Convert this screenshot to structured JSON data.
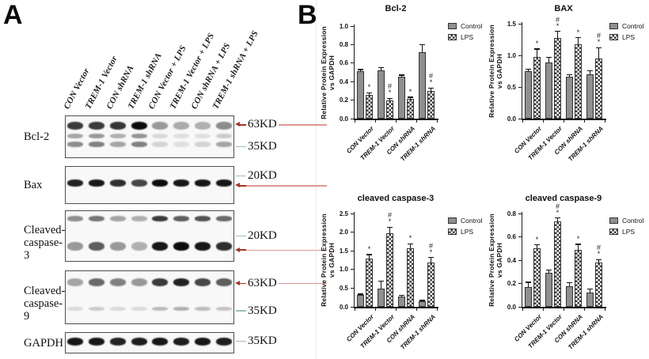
{
  "figure": {
    "panel_a_label": "A",
    "panel_b_label": "B"
  },
  "panel_a": {
    "lane_labels": [
      "CON Vector",
      "TREM-1 Vector",
      "CON shRNA",
      "TREM-1 shRNA",
      "CON Vector + LPS",
      "TREM-1 Vector + LPS",
      "CON shRNA + LPS",
      "TREM-1 shRNA + LPS"
    ],
    "blots": [
      {
        "protein": [
          "Bcl-2"
        ],
        "rows": [
          {
            "y": 0.14,
            "h": 10,
            "bands": [
              0.8,
              0.8,
              0.82,
              1.0,
              0.4,
              0.32,
              0.3,
              0.45
            ]
          },
          {
            "y": 0.42,
            "h": 6,
            "bands": [
              0.35,
              0.4,
              0.3,
              0.42,
              0.12,
              0.1,
              0.1,
              0.18
            ]
          },
          {
            "y": 0.62,
            "h": 7,
            "bands": [
              0.45,
              0.5,
              0.35,
              0.5,
              0.15,
              0.1,
              0.15,
              0.35
            ]
          }
        ],
        "markers": [
          {
            "label": "63KD",
            "color": "red",
            "y": 0.22,
            "arrow": true,
            "ext": true
          },
          {
            "label": "35KD",
            "color": "teal",
            "y": 0.73,
            "arrow": false,
            "ext": false
          }
        ]
      },
      {
        "protein": [
          "Bax"
        ],
        "rows": [
          {
            "y": 0.36,
            "h": 9,
            "bands": [
              0.9,
              0.95,
              0.85,
              0.75,
              1.0,
              0.95,
              0.95,
              0.95
            ]
          }
        ],
        "markers": [
          {
            "label": "20KD",
            "color": "teal",
            "y": 0.26,
            "arrow": false,
            "ext": false
          },
          {
            "label": "",
            "color": "red",
            "y": 0.52,
            "arrow": true,
            "ext": true
          }
        ]
      },
      {
        "protein": [
          "Cleaved-",
          "caspase-3"
        ],
        "rows": [
          {
            "y": 0.1,
            "h": 7,
            "bands": [
              0.45,
              0.55,
              0.35,
              0.3,
              0.8,
              0.65,
              0.7,
              0.6
            ]
          },
          {
            "y": 0.62,
            "h": 11,
            "bands": [
              0.4,
              0.65,
              0.4,
              0.3,
              0.95,
              1.0,
              0.95,
              0.85
            ]
          }
        ],
        "markers": [
          {
            "label": "20KD",
            "color": "teal",
            "y": 0.5,
            "arrow": false,
            "ext": false
          },
          {
            "label": "",
            "color": "red",
            "y": 0.77,
            "arrow": true,
            "ext": true
          }
        ]
      },
      {
        "protein": [
          "Cleaved-",
          "caspase-9"
        ],
        "rows": [
          {
            "y": 0.14,
            "h": 10,
            "bands": [
              0.35,
              0.6,
              0.5,
              0.4,
              0.8,
              0.9,
              0.75,
              0.65
            ]
          },
          {
            "y": 0.68,
            "h": 5,
            "bands": [
              0.12,
              0.18,
              0.12,
              0.12,
              0.25,
              0.3,
              0.25,
              0.22
            ]
          }
        ],
        "markers": [
          {
            "label": "63KD",
            "color": "red",
            "y": 0.24,
            "arrow": true,
            "ext": true
          },
          {
            "label": "35KD",
            "color": "teal",
            "y": 0.75,
            "arrow": false,
            "ext": false
          }
        ]
      },
      {
        "protein": [
          "GAPDH"
        ],
        "rows": [
          {
            "y": 0.25,
            "h": 10,
            "bands": [
              0.95,
              0.95,
              0.9,
              0.92,
              0.95,
              0.92,
              0.95,
              0.92
            ]
          }
        ],
        "markers": [
          {
            "label": "35KD",
            "color": "teal",
            "y": 0.42,
            "arrow": false,
            "ext": false
          }
        ]
      }
    ]
  },
  "panel_b": {
    "legend": {
      "control": "Control",
      "lps": "LPS"
    }
  },
  "chart_data": [
    {
      "type": "bar",
      "title": "Bcl-2",
      "ylabel": "Relative Protein Expression\nvs GAPDH",
      "categories": [
        "CON Vector",
        "TREM-1 Vector",
        "CON shRNA",
        "TREM-1 shRNA"
      ],
      "ylim": [
        0,
        1.0
      ],
      "yticks": [
        "0.0",
        "0.2",
        "0.4",
        "0.6",
        "0.8",
        "1.0"
      ],
      "legend_position": "upper right",
      "series": [
        {
          "name": "Control",
          "values": [
            0.51,
            0.52,
            0.45,
            0.72
          ],
          "errors": [
            0.02,
            0.03,
            0.02,
            0.08
          ],
          "sig": [
            [],
            [],
            [],
            []
          ]
        },
        {
          "name": "LPS",
          "values": [
            0.26,
            0.2,
            0.21,
            0.3
          ],
          "errors": [
            0.02,
            0.02,
            0.02,
            0.03
          ],
          "sig": [
            [
              "*"
            ],
            [
              "#",
              "*"
            ],
            [
              "*"
            ],
            [
              "#",
              "*"
            ]
          ]
        }
      ]
    },
    {
      "type": "bar",
      "title": "BAX",
      "ylabel": "Relative Protein Expression\nvs GAPDH",
      "categories": [
        "CON Vector",
        "TREM-1 Vector",
        "CON shRNA",
        "TREM-1 shRNA"
      ],
      "ylim": [
        0,
        1.5
      ],
      "yticks": [
        "0.0",
        "0.5",
        "1.0",
        "1.5"
      ],
      "legend_position": "upper right",
      "series": [
        {
          "name": "Control",
          "values": [
            0.75,
            0.89,
            0.66,
            0.7
          ],
          "errors": [
            0.03,
            0.08,
            0.03,
            0.06
          ],
          "sig": [
            [],
            [],
            [],
            []
          ]
        },
        {
          "name": "LPS",
          "values": [
            0.98,
            1.28,
            1.18,
            0.95
          ],
          "errors": [
            0.12,
            0.1,
            0.1,
            0.17
          ],
          "sig": [
            [
              "*"
            ],
            [
              "#",
              "*"
            ],
            [
              "*"
            ],
            [
              "#",
              "*"
            ]
          ]
        }
      ]
    },
    {
      "type": "bar",
      "title": "cleaved caspase-3",
      "ylabel": "Relative Protein Expression\nvs GAPDH",
      "categories": [
        "CON Vector",
        "TREM-1 Vector",
        "CON shRNA",
        "TREM-1 shRNA"
      ],
      "ylim": [
        0,
        2.5
      ],
      "yticks": [
        "0.0",
        "0.5",
        "1.0",
        "1.5",
        "2.0",
        "2.5"
      ],
      "legend_position": "upper right",
      "series": [
        {
          "name": "Control",
          "values": [
            0.31,
            0.49,
            0.27,
            0.15
          ],
          "errors": [
            0.03,
            0.2,
            0.03,
            0.02
          ],
          "sig": [
            [],
            [],
            [],
            []
          ]
        },
        {
          "name": "LPS",
          "values": [
            1.3,
            1.98,
            1.57,
            1.19
          ],
          "errors": [
            0.1,
            0.15,
            0.12,
            0.13
          ],
          "sig": [
            [
              "*"
            ],
            [
              "#",
              "*"
            ],
            [
              "*"
            ],
            [
              "#",
              "*"
            ]
          ]
        }
      ]
    },
    {
      "type": "bar",
      "title": "cleaved caspase-9",
      "ylabel": "Relative Protein Expression\nvs GAPDH",
      "categories": [
        "CON Vector",
        "TREM-1 Vector",
        "CON shRNA",
        "TREM-1 shRNA"
      ],
      "ylim": [
        0,
        0.8
      ],
      "yticks": [
        "0.0",
        "0.2",
        "0.4",
        "0.6",
        "0.8"
      ],
      "legend_position": "upper right",
      "series": [
        {
          "name": "Control",
          "values": [
            0.17,
            0.29,
            0.175,
            0.12
          ],
          "errors": [
            0.04,
            0.025,
            0.03,
            0.03
          ],
          "sig": [
            [],
            [],
            [],
            []
          ]
        },
        {
          "name": "LPS",
          "values": [
            0.5,
            0.73,
            0.485,
            0.38
          ],
          "errors": [
            0.03,
            0.03,
            0.05,
            0.025
          ],
          "sig": [
            [
              "*"
            ],
            [
              "#",
              "*"
            ],
            [
              "*"
            ],
            [
              "#",
              "*"
            ]
          ]
        }
      ]
    }
  ]
}
